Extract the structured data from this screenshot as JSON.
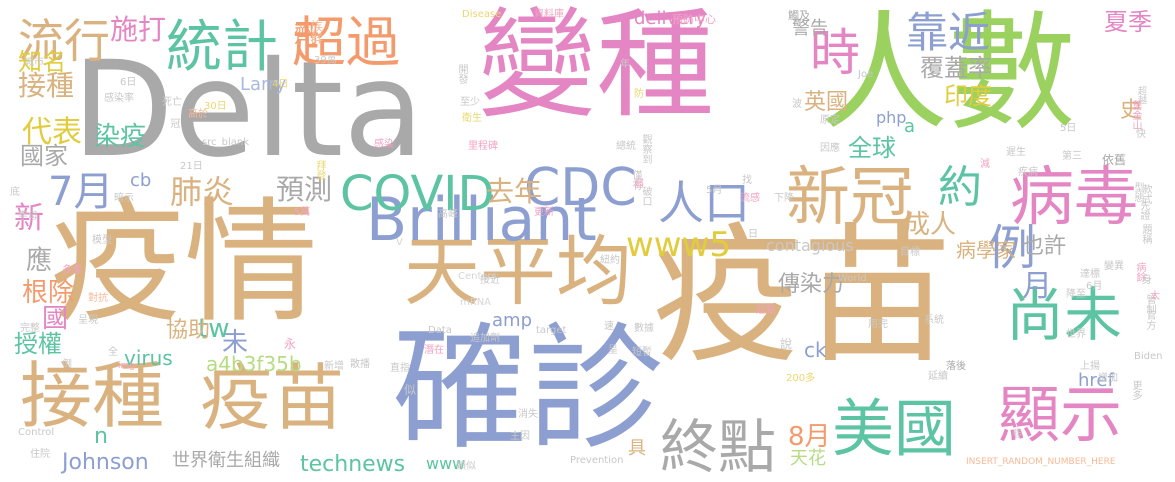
{
  "palette": {
    "pink": "#e586c4",
    "green": "#9ad15f",
    "gray": "#a9a9a9",
    "tan": "#d9b27f",
    "blue": "#8d9fd1",
    "teal": "#5cc4a2",
    "yellow": "#e0cc3c",
    "orange": "#f49b6e",
    "lightpink": "#f1a3c4",
    "lightgreen": "#b6dc83",
    "lightyellow": "#ead76f",
    "lightteal": "#8cd4bc",
    "lightblue": "#a9b8e0",
    "lightorange": "#f7b996",
    "lightgray": "#c8c8c8",
    "palegray": "#d6d6d6"
  },
  "words": [
    {
      "text": "Delta",
      "color": "gray"
    },
    {
      "text": "變種",
      "color": "pink"
    },
    {
      "text": "人數",
      "color": "green"
    },
    {
      "text": "疫情",
      "color": "tan"
    },
    {
      "text": "疫苗",
      "color": "tan"
    },
    {
      "text": "確診",
      "color": "blue"
    },
    {
      "text": "接種",
      "color": "tan"
    },
    {
      "text": "疫苗",
      "color": "tan"
    },
    {
      "text": "天平均",
      "color": "tan"
    },
    {
      "text": "Brilliant",
      "color": "blue"
    },
    {
      "text": "CDC",
      "color": "blue"
    },
    {
      "text": "COVID",
      "color": "teal"
    },
    {
      "text": "新冠",
      "color": "tan"
    },
    {
      "text": "病毒",
      "color": "pink"
    },
    {
      "text": "統計",
      "color": "teal"
    },
    {
      "text": "超過",
      "color": "orange"
    },
    {
      "text": "流行",
      "color": "tan"
    },
    {
      "text": "時",
      "color": "pink"
    },
    {
      "text": "靠近",
      "color": "blue"
    },
    {
      "text": "尚未",
      "color": "teal"
    },
    {
      "text": "美國",
      "color": "teal"
    },
    {
      "text": "顯示",
      "color": "pink"
    },
    {
      "text": "終點",
      "color": "gray"
    },
    {
      "text": "人口",
      "color": "blue"
    },
    {
      "text": "約",
      "color": "teal"
    },
    {
      "text": "例",
      "color": "blue"
    },
    {
      "text": "月",
      "color": "blue"
    },
    {
      "text": "7月",
      "color": "blue"
    },
    {
      "text": "肺炎",
      "color": "tan"
    },
    {
      "text": "預測",
      "color": "gray"
    },
    {
      "text": "去年",
      "color": "tan"
    },
    {
      "text": "www5",
      "color": "yellow"
    },
    {
      "text": "tw",
      "color": "teal"
    },
    {
      "text": "施打",
      "color": "pink"
    },
    {
      "text": "接種",
      "color": "tan"
    },
    {
      "text": "代表",
      "color": "yellow"
    },
    {
      "text": "國家",
      "color": "gray"
    },
    {
      "text": "知名",
      "color": "yellow"
    },
    {
      "text": "染疫",
      "color": "teal"
    },
    {
      "text": "新",
      "color": "pink"
    },
    {
      "text": "應",
      "color": "gray"
    },
    {
      "text": "根除",
      "color": "orange"
    },
    {
      "text": "授權",
      "color": "teal"
    },
    {
      "text": "國",
      "color": "pink"
    },
    {
      "text": "未",
      "color": "blue"
    },
    {
      "text": "協助",
      "color": "tan"
    },
    {
      "text": "a4b3f35b",
      "color": "lightgreen"
    },
    {
      "text": "virus",
      "color": "teal"
    },
    {
      "text": "Johnson",
      "color": "blue"
    },
    {
      "text": "世界衛生組織",
      "color": "gray"
    },
    {
      "text": "technews",
      "color": "teal"
    },
    {
      "text": "www",
      "color": "teal"
    },
    {
      "text": "具",
      "color": "tan"
    },
    {
      "text": "8月",
      "color": "orange"
    },
    {
      "text": "天花",
      "color": "lightgreen"
    },
    {
      "text": "全球",
      "color": "teal"
    },
    {
      "text": "成人",
      "color": "tan"
    },
    {
      "text": "病學家",
      "color": "tan"
    },
    {
      "text": "也許",
      "color": "gray"
    },
    {
      "text": "傳染力",
      "color": "gray"
    },
    {
      "text": "contagious",
      "color": "lightgray"
    },
    {
      "text": "amp",
      "color": "blue"
    },
    {
      "text": "ck",
      "color": "blue"
    },
    {
      "text": "href",
      "color": "blue"
    },
    {
      "text": "警告",
      "color": "gray"
    },
    {
      "text": "覆蓋率",
      "color": "gray"
    },
    {
      "text": "夏季",
      "color": "pink"
    },
    {
      "text": "史",
      "color": "tan"
    },
    {
      "text": "印度",
      "color": "yellow"
    },
    {
      "text": "英國",
      "color": "tan"
    },
    {
      "text": "php",
      "color": "blue"
    },
    {
      "text": "delivery",
      "color": "pink"
    },
    {
      "text": "劑",
      "color": "orange"
    },
    {
      "text": "Larry",
      "color": "lightblue"
    },
    {
      "text": "a",
      "color": "teal"
    },
    {
      "text": "cb",
      "color": "blue"
    },
    {
      "text": "Disease",
      "color": "lightyellow"
    },
    {
      "text": "資料庫",
      "color": "lightpink"
    },
    {
      "text": "預防中心",
      "color": "lightpink"
    },
    {
      "text": "觸及",
      "color": "gray"
    },
    {
      "text": "族群",
      "color": "lightorange"
    },
    {
      "text": "城市",
      "color": "lightgray"
    },
    {
      "text": "39萬",
      "color": "lightgray"
    },
    {
      "text": "開發",
      "color": "lightgray"
    },
    {
      "text": "6日",
      "color": "lightgray"
    },
    {
      "text": "感染率",
      "color": "lightgray"
    },
    {
      "text": "死亡",
      "color": "lightgray"
    },
    {
      "text": "4日",
      "color": "lightyellow"
    },
    {
      "text": "高於",
      "color": "lightorange"
    },
    {
      "text": "30日",
      "color": "lightyellow"
    },
    {
      "text": "至少",
      "color": "lightgray"
    },
    {
      "text": "衛生",
      "color": "lightyellow"
    },
    {
      "text": "冠",
      "color": "lightgray"
    },
    {
      "text": "src_blank",
      "color": "lightgray"
    },
    {
      "text": "感染",
      "color": "lightpink"
    },
    {
      "text": "里程碑",
      "color": "lightpink"
    },
    {
      "text": "觀察到",
      "color": "lightgray"
    },
    {
      "text": "總統",
      "color": "lightgray"
    },
    {
      "text": "21日",
      "color": "lightgray"
    },
    {
      "text": "拜登",
      "color": "lightyellow"
    },
    {
      "text": "Joe",
      "color": "lightgray"
    },
    {
      "text": "超越",
      "color": "lightgray"
    },
    {
      "text": "舊金山",
      "color": "lightpink"
    },
    {
      "text": "因應",
      "color": "lightgray"
    },
    {
      "text": "疾病",
      "color": "lightgray"
    },
    {
      "text": "第三",
      "color": "lightgray"
    },
    {
      "text": "依舊",
      "color": "gray"
    },
    {
      "text": "款式",
      "color": "lightgray"
    },
    {
      "text": "先證",
      "color": "lightgray"
    },
    {
      "text": "題稱",
      "color": "lightgray"
    },
    {
      "text": "模型",
      "color": "lightgray"
    },
    {
      "text": "多重",
      "color": "lightpink"
    },
    {
      "text": "Centers",
      "color": "palegray"
    },
    {
      "text": "接近",
      "color": "lightgray"
    },
    {
      "text": "目標",
      "color": "lightgray"
    },
    {
      "text": "變異",
      "color": "lightgray"
    },
    {
      "text": "病餘",
      "color": "lightpink"
    },
    {
      "text": "World",
      "color": "lightgray"
    },
    {
      "text": "降至",
      "color": "lightgray"
    },
    {
      "text": "6月",
      "color": "lightgray"
    },
    {
      "text": "管制",
      "color": "lightgray"
    },
    {
      "text": "官方",
      "color": "lightgray"
    },
    {
      "text": "mRNA",
      "color": "palegray"
    },
    {
      "text": "Data",
      "color": "lightgray"
    },
    {
      "text": "target",
      "color": "lightgray"
    },
    {
      "text": "數據",
      "color": "lightgray"
    },
    {
      "text": "世界",
      "color": "lightgray"
    },
    {
      "text": "用完",
      "color": "lightgray"
    },
    {
      "text": "系統",
      "color": "lightgray"
    },
    {
      "text": "追加劑",
      "color": "lightgray"
    },
    {
      "text": "短暫",
      "color": "lightgray"
    },
    {
      "text": "起點",
      "color": "lightpink"
    },
    {
      "text": "Biden",
      "color": "lightgray"
    },
    {
      "text": "上揚",
      "color": "lightgray"
    },
    {
      "text": "延續",
      "color": "lightgray"
    },
    {
      "text": "落後",
      "color": "gray"
    },
    {
      "text": "增加",
      "color": "lightgray"
    },
    {
      "text": "更多",
      "color": "lightgray"
    },
    {
      "text": "200多",
      "color": "lightyellow"
    },
    {
      "text": "消失",
      "color": "lightgray"
    },
    {
      "text": "主因",
      "color": "lightgray"
    },
    {
      "text": "Prevention",
      "color": "lightgray"
    },
    {
      "text": "INSERT_RANDOM_NUMBER_HERE",
      "color": "lightorange"
    },
    {
      "text": "Control",
      "color": "lightgray"
    },
    {
      "text": "住院",
      "color": "lightgray"
    },
    {
      "text": "類似",
      "color": "lightgray"
    },
    {
      "text": "散播",
      "color": "lightgray"
    },
    {
      "text": "新增",
      "color": "lightgray"
    },
    {
      "text": "直指",
      "color": "lightgray"
    },
    {
      "text": "潛在",
      "color": "lightpink"
    },
    {
      "text": "img",
      "color": "lightpink"
    },
    {
      "text": "呈現",
      "color": "lightgray"
    },
    {
      "text": "對抗",
      "color": "lightorange"
    },
    {
      "text": "完整",
      "color": "lightgray"
    },
    {
      "text": "5萬",
      "color": "lightpink"
    },
    {
      "text": "更新",
      "color": "lightpink"
    },
    {
      "text": "高峰",
      "color": "lightgray"
    },
    {
      "text": "流感",
      "color": "lightpink"
    },
    {
      "text": "紐約",
      "color": "lightgray"
    },
    {
      "text": "下降",
      "color": "lightgray"
    },
    {
      "text": "5月",
      "color": "lightgray"
    },
    {
      "text": "破口",
      "color": "lightgray"
    },
    {
      "text": "僅有",
      "color": "lightgray"
    },
    {
      "text": "暗示",
      "color": "lightgray"
    },
    {
      "text": "宇母",
      "color": "lightgray"
    },
    {
      "text": "底",
      "color": "lightgray"
    },
    {
      "text": "達標",
      "color": "lightgray"
    },
    {
      "text": "n",
      "color": "teal"
    },
    {
      "text": "V",
      "color": "palegray"
    },
    {
      "text": "全",
      "color": "lightgray"
    },
    {
      "text": "倒",
      "color": "lightgray"
    },
    {
      "text": "永",
      "color": "lightpink"
    },
    {
      "text": "似",
      "color": "lightgray"
    },
    {
      "text": "速",
      "color": "lightgray"
    },
    {
      "text": "說",
      "color": "lightgray"
    },
    {
      "text": "呈",
      "color": "lightgray"
    },
    {
      "text": "快",
      "color": "lightgray"
    },
    {
      "text": "身",
      "color": "lightgray"
    },
    {
      "text": "太",
      "color": "lightpink"
    },
    {
      "text": "非",
      "color": "lightgray"
    },
    {
      "text": "減",
      "color": "lightpink"
    },
    {
      "text": "年",
      "color": "lightgray"
    },
    {
      "text": "防",
      "color": "lightyellow"
    },
    {
      "text": "波",
      "color": "lightgray"
    },
    {
      "text": "找",
      "color": "lightgray"
    },
    {
      "text": "弱",
      "color": "lightpink"
    },
    {
      "text": "日",
      "color": "lightgray"
    },
    {
      "text": "原定",
      "color": "lightgray"
    },
    {
      "text": "5日",
      "color": "lightgray"
    },
    {
      "text": "遲生",
      "color": "lightgray"
    },
    {
      "text": "型態",
      "color": "lightgray"
    }
  ]
}
